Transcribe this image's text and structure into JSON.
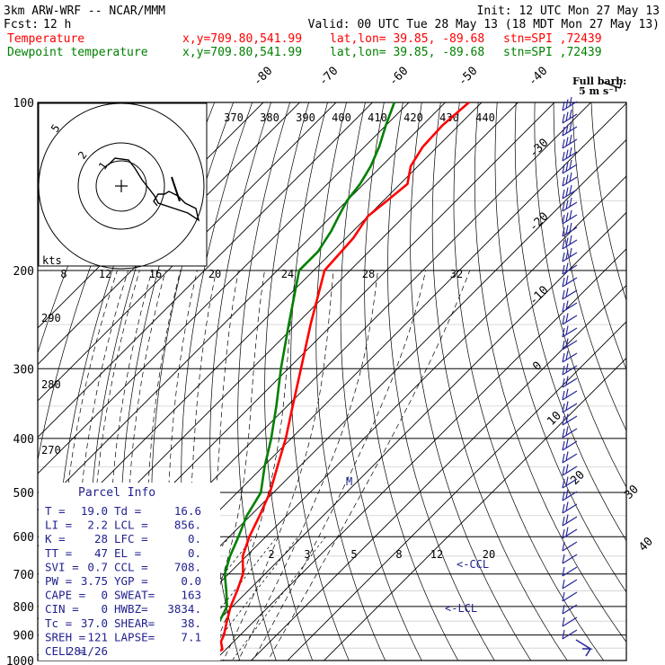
{
  "header": {
    "model": "3km ARW-WRF -- NCAR/MMM",
    "init": "Init: 12 UTC Mon 27 May 13",
    "fcst_label": "Fcst:",
    "fcst_value": "12 h",
    "valid": "Valid: 00 UTC Tue 28 May 13 (18 MDT Mon 27 May 13)",
    "temp_label": "Temperature",
    "dewp_label": "Dewpoint temperature",
    "loc_xy": "x,y=709.80,541.99",
    "loc_latlon": "lat,lon= 39.85, -89.68",
    "loc_stn": "stn=SPI ,72439"
  },
  "colors": {
    "temperature": "#ff0000",
    "dewpoint": "#008000",
    "frame": "#000000",
    "barbs": "#2a2a9a",
    "info_text": "#1f1f8f"
  },
  "wind_legend": {
    "line1": "Full barb:",
    "line2": "5 m s⁻¹"
  },
  "hodograph": {
    "units": "kts",
    "ring_labels": [
      "5",
      "2",
      "1"
    ]
  },
  "parcel_info": {
    "title": "Parcel Info",
    "rows": [
      [
        "T  =",
        "19.0",
        "Td =",
        "16.6"
      ],
      [
        "LI =",
        "2.2",
        "LCL =",
        "856."
      ],
      [
        "K  =",
        "28",
        "LFC =",
        "0."
      ],
      [
        "TT =",
        "47",
        "EL  =",
        "0."
      ],
      [
        "SVI =",
        "0.7",
        "CCL =",
        "708."
      ],
      [
        "PW =",
        "3.75",
        "YGP =",
        "0.0"
      ],
      [
        "CAPE =",
        "0",
        "SWEAT=",
        "163"
      ],
      [
        "CIN =",
        "0",
        "HWBZ=",
        "3834."
      ],
      [
        "Tc =",
        "37.0",
        "SHEAR=",
        "38."
      ],
      [
        "SREH =",
        "121",
        "LAPSE=",
        "7.1"
      ],
      [
        "CELL =",
        "281/26",
        "",
        ""
      ]
    ]
  },
  "annotations": {
    "ccl": "<-CCL",
    "lcl": "<-LCL",
    "m": "M"
  },
  "chart_data": {
    "type": "line",
    "chart_kind": "skew-T log-p sounding",
    "y_axis": "pressure (hPa), log scale",
    "pressure_labels": [
      "100",
      "200",
      "300",
      "400",
      "500",
      "600",
      "700",
      "800",
      "900",
      "1000"
    ],
    "isotherm_labels": [
      "-80",
      "-70",
      "-60",
      "-50",
      "-40",
      "-30",
      "-20",
      "-10",
      "0",
      "10",
      "20",
      "30",
      "40"
    ],
    "theta_labels": [
      "370",
      "380",
      "390",
      "400",
      "410",
      "420",
      "430",
      "440"
    ],
    "mixing_ratio_labels_upper": [
      "8",
      "12",
      "16",
      "20",
      "24",
      "28",
      "32"
    ],
    "mixing_ratio_labels_lower": [
      "2",
      "3",
      "5",
      "8",
      "12",
      "20"
    ],
    "dry_adiabat_labels": [
      "290",
      "280",
      "270"
    ],
    "series": [
      {
        "name": "Temperature",
        "points": [
          {
            "p": 975,
            "t": 18.0
          },
          {
            "p": 955,
            "t": 19.0
          },
          {
            "p": 925,
            "t": 16.5
          },
          {
            "p": 900,
            "t": 15.5
          },
          {
            "p": 850,
            "t": 12.5
          },
          {
            "p": 800,
            "t": 9.5
          },
          {
            "p": 750,
            "t": 7.0
          },
          {
            "p": 700,
            "t": 4.0
          },
          {
            "p": 650,
            "t": -1.0
          },
          {
            "p": 600,
            "t": -4.5
          },
          {
            "p": 550,
            "t": -7.5
          },
          {
            "p": 500,
            "t": -11.0
          },
          {
            "p": 450,
            "t": -16.0
          },
          {
            "p": 400,
            "t": -21.5
          },
          {
            "p": 350,
            "t": -28.5
          },
          {
            "p": 300,
            "t": -36.5
          },
          {
            "p": 250,
            "t": -46.0
          },
          {
            "p": 200,
            "t": -57.0
          },
          {
            "p": 175,
            "t": -58.0
          },
          {
            "p": 160,
            "t": -60.0
          },
          {
            "p": 150,
            "t": -59.0
          },
          {
            "p": 140,
            "t": -58.0
          },
          {
            "p": 130,
            "t": -62.0
          },
          {
            "p": 120,
            "t": -64.0
          },
          {
            "p": 110,
            "t": -64.5
          },
          {
            "p": 100,
            "t": -63.5
          }
        ]
      },
      {
        "name": "Dewpoint temperature",
        "points": [
          {
            "p": 975,
            "t": 16.5
          },
          {
            "p": 955,
            "t": 14.5
          },
          {
            "p": 925,
            "t": 11.5
          },
          {
            "p": 900,
            "t": 10.5
          },
          {
            "p": 850,
            "t": 10.5
          },
          {
            "p": 800,
            "t": 8.5
          },
          {
            "p": 750,
            "t": 4.0
          },
          {
            "p": 700,
            "t": -1.0
          },
          {
            "p": 650,
            "t": -4.5
          },
          {
            "p": 600,
            "t": -7.5
          },
          {
            "p": 550,
            "t": -11.0
          },
          {
            "p": 500,
            "t": -13.5
          },
          {
            "p": 450,
            "t": -19.5
          },
          {
            "p": 400,
            "t": -25.5
          },
          {
            "p": 350,
            "t": -33.0
          },
          {
            "p": 300,
            "t": -42.0
          },
          {
            "p": 250,
            "t": -52.0
          },
          {
            "p": 200,
            "t": -64.0
          },
          {
            "p": 185,
            "t": -64.0
          },
          {
            "p": 170,
            "t": -66.0
          },
          {
            "p": 160,
            "t": -68.0
          },
          {
            "p": 150,
            "t": -70.0
          },
          {
            "p": 140,
            "t": -71.0
          },
          {
            "p": 130,
            "t": -73.0
          },
          {
            "p": 120,
            "t": -76.0
          },
          {
            "p": 110,
            "t": -80.0
          },
          {
            "p": 100,
            "t": -84.0
          }
        ]
      }
    ],
    "grid": true
  }
}
